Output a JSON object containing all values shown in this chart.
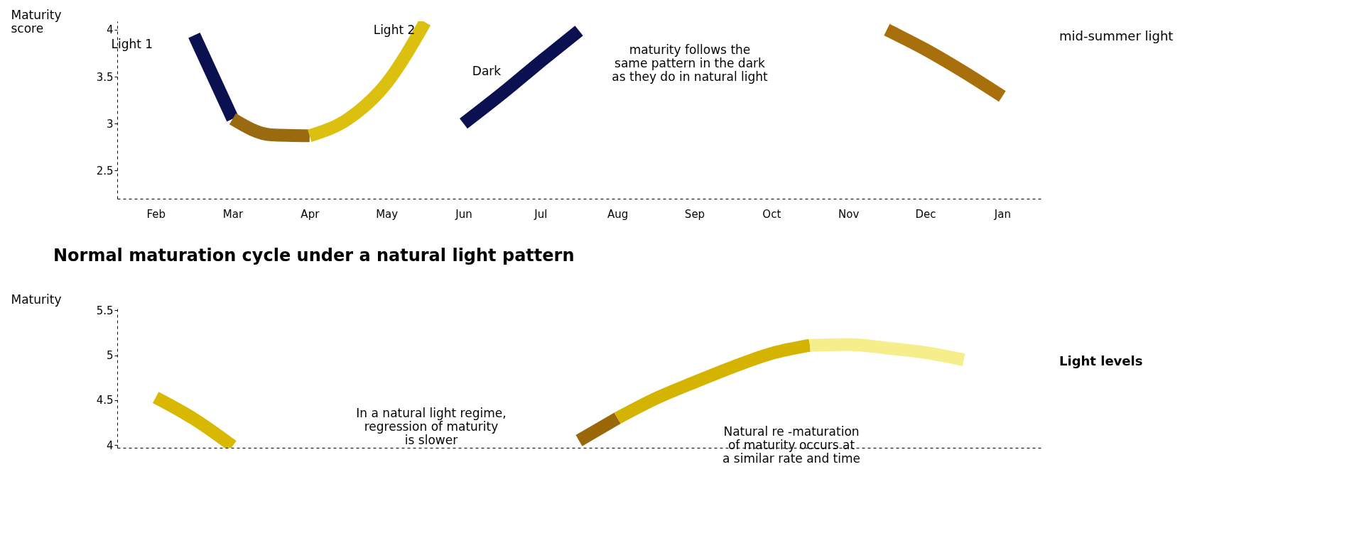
{
  "chart_data": [
    {
      "type": "line",
      "ylabel": "Maturity score",
      "ylim": [
        2.2,
        4.09
      ],
      "yticks": [
        2.5,
        3,
        3.5,
        4
      ],
      "categories": [
        null,
        "Feb",
        null,
        "Mar",
        null,
        "Apr",
        null,
        "May",
        null,
        "Jun",
        null,
        "Jul",
        null,
        "Aug",
        null,
        "Sep",
        null,
        "Oct",
        null,
        "Nov",
        null,
        "Dec",
        null,
        "Jan",
        null
      ],
      "grid": false,
      "legend": false,
      "line_style": "solid",
      "marker": "none",
      "series": [
        {
          "color": "#0b1150",
          "values": [
            null,
            null,
            3.94,
            3.05,
            null,
            null,
            null,
            null,
            null,
            null,
            null,
            null,
            null,
            null,
            null,
            null,
            null,
            null,
            null,
            null,
            null,
            null,
            null,
            null,
            null
          ]
        },
        {
          "color": "#9a6a10",
          "values": [
            null,
            null,
            null,
            3.05,
            2.88,
            2.87,
            null,
            null,
            null,
            null,
            null,
            null,
            null,
            null,
            null,
            null,
            null,
            null,
            null,
            null,
            null,
            null,
            null,
            null,
            null
          ]
        },
        {
          "color": "#dcc010",
          "values": [
            null,
            null,
            null,
            null,
            null,
            2.87,
            3.05,
            3.43,
            4.08,
            null,
            null,
            null,
            null,
            null,
            null,
            null,
            null,
            null,
            null,
            null,
            null,
            null,
            null,
            null,
            null
          ]
        },
        {
          "color": "#0b1150",
          "values": [
            null,
            null,
            null,
            null,
            null,
            null,
            null,
            null,
            null,
            3.0,
            3.32,
            3.66,
            3.99,
            null,
            null,
            null,
            null,
            null,
            null,
            null,
            null,
            null,
            null,
            null,
            null
          ]
        },
        {
          "color": "#a8700c",
          "values": [
            null,
            null,
            null,
            null,
            null,
            null,
            null,
            null,
            null,
            null,
            null,
            null,
            null,
            null,
            null,
            null,
            null,
            null,
            null,
            null,
            4.0,
            3.79,
            3.55,
            3.29,
            null
          ]
        }
      ],
      "annotations": [
        "Light 1",
        "Light 2",
        "Dark",
        "maturity follows the\nsame pattern in the dark\nas they do in natural light",
        "mid-summer light"
      ]
    },
    {
      "type": "line",
      "title": "Normal maturation cycle under a natural light pattern",
      "ylabel": "Maturity",
      "ylim": [
        3.97,
        5.55
      ],
      "yticks": [
        4,
        4.5,
        5,
        5.5
      ],
      "categories": [
        null,
        null,
        null,
        null,
        null,
        null,
        null,
        null,
        null,
        null,
        null,
        null,
        null,
        null,
        null,
        null,
        null,
        null,
        null,
        null,
        null,
        null,
        null,
        null,
        null
      ],
      "tick_labels": "y",
      "grid": false,
      "legend": false,
      "line_style": "solid",
      "marker": "none",
      "series": [
        {
          "color": "#d8b800",
          "values": [
            null,
            4.53,
            4.29,
            3.99,
            null,
            null,
            null,
            null,
            null,
            null,
            null,
            null,
            null,
            null,
            null,
            null,
            null,
            null,
            null,
            null,
            null,
            null,
            null,
            null,
            null
          ]
        },
        {
          "color": "#9a6808",
          "values": [
            null,
            null,
            null,
            null,
            null,
            null,
            null,
            null,
            null,
            null,
            null,
            null,
            4.05,
            4.3,
            null,
            null,
            null,
            null,
            null,
            null,
            null,
            null,
            null,
            null,
            null
          ]
        },
        {
          "color": "#d4b400",
          "values": [
            null,
            null,
            null,
            null,
            null,
            null,
            null,
            null,
            null,
            null,
            null,
            null,
            null,
            4.3,
            4.52,
            4.7,
            4.87,
            5.02,
            5.11,
            null,
            null,
            null,
            null,
            null,
            null
          ]
        },
        {
          "color": "#f6ee8a",
          "values": [
            null,
            null,
            null,
            null,
            null,
            null,
            null,
            null,
            null,
            null,
            null,
            null,
            null,
            null,
            null,
            null,
            null,
            null,
            5.11,
            5.12,
            5.08,
            5.03,
            4.95,
            null,
            null
          ]
        }
      ],
      "annotations": [
        "In a natural light regime,\nregression of maturity\nis slower",
        "Natural re -maturation\nof maturity occurs at\na similar rate and time",
        "Light levels"
      ]
    }
  ]
}
